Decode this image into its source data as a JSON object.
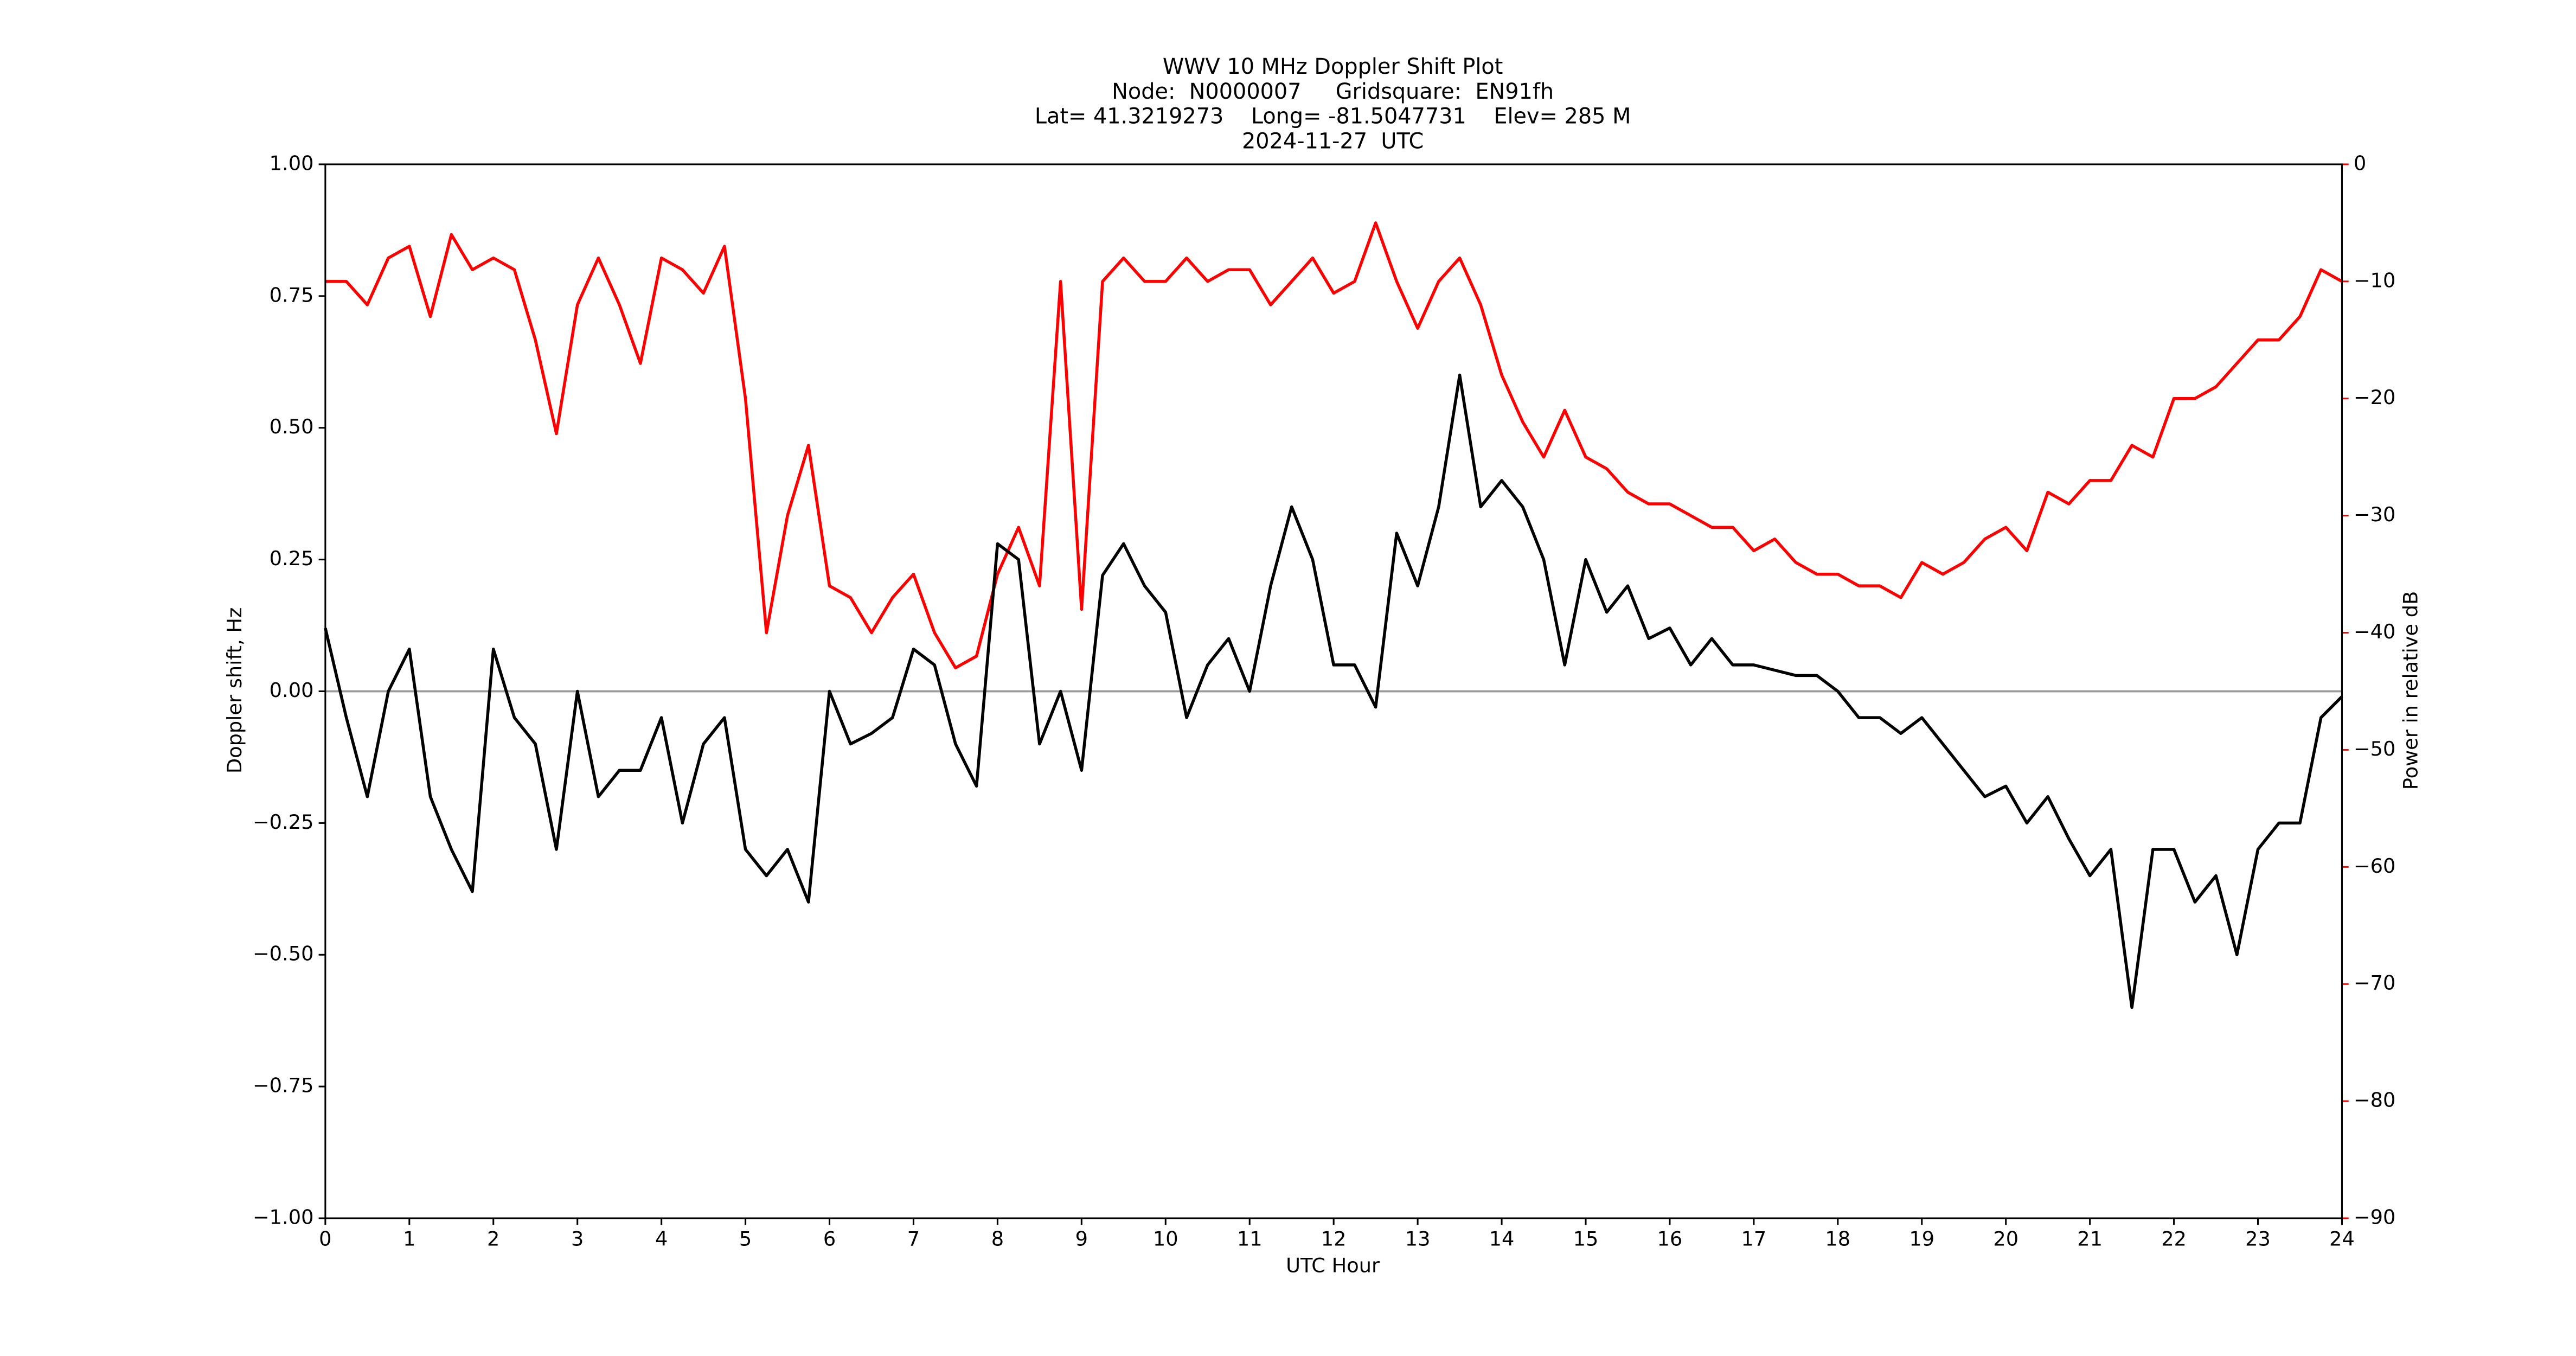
{
  "chart_data": {
    "type": "line",
    "title": [
      "WWV 10 MHz Doppler Shift Plot",
      "Node:  N0000007     Gridsquare:  EN91fh",
      "Lat= 41.3219273    Long= -81.5047731    Elev= 285 M",
      "2024-11-27  UTC"
    ],
    "x_label": "UTC Hour",
    "y_label": "Doppler shift, Hz",
    "y2_label": "Power in relative dB",
    "xlim": [
      0,
      24
    ],
    "xticks": [
      0,
      1,
      2,
      3,
      4,
      5,
      6,
      7,
      8,
      9,
      10,
      11,
      12,
      13,
      14,
      15,
      16,
      17,
      18,
      19,
      20,
      21,
      22,
      23,
      24
    ],
    "ylim": [
      -1,
      1
    ],
    "yticks": [
      {
        "value": -1,
        "label": "−1.00"
      },
      {
        "value": -0.75,
        "label": "−0.75"
      },
      {
        "value": -0.5,
        "label": "−0.50"
      },
      {
        "value": -0.25,
        "label": "−0.25"
      },
      {
        "value": 0,
        "label": "0.00"
      },
      {
        "value": 0.25,
        "label": "0.25"
      },
      {
        "value": 0.5,
        "label": "0.50"
      },
      {
        "value": 0.75,
        "label": "0.75"
      },
      {
        "value": 1,
        "label": "1.00"
      }
    ],
    "y2lim": [
      -90,
      0
    ],
    "y2ticks": [
      {
        "value": -90,
        "label": "−90"
      },
      {
        "value": -80,
        "label": "−80"
      },
      {
        "value": -70,
        "label": "−70"
      },
      {
        "value": -60,
        "label": "−60"
      },
      {
        "value": -50,
        "label": "−50"
      },
      {
        "value": -40,
        "label": "−40"
      },
      {
        "value": -30,
        "label": "−30"
      },
      {
        "value": -20,
        "label": "−20"
      },
      {
        "value": -10,
        "label": "−10"
      },
      0
    ],
    "reference_line": {
      "value": 0,
      "color": "#999999"
    },
    "y2_color": "#ff0000",
    "x": [
      0,
      0.25,
      0.5,
      0.75,
      1,
      1.25,
      1.5,
      1.75,
      2,
      2.25,
      2.5,
      2.75,
      3,
      3.25,
      3.5,
      3.75,
      4,
      4.25,
      4.5,
      4.75,
      5,
      5.25,
      5.5,
      5.75,
      6,
      6.25,
      6.5,
      6.75,
      7,
      7.25,
      7.5,
      7.75,
      8,
      8.25,
      8.5,
      8.75,
      9,
      9.25,
      9.5,
      9.75,
      10,
      10.25,
      10.5,
      10.75,
      11,
      11.25,
      11.5,
      11.75,
      12,
      12.25,
      12.5,
      12.75,
      13,
      13.25,
      13.5,
      13.75,
      14,
      14.25,
      14.5,
      14.75,
      15,
      15.25,
      15.5,
      15.75,
      16,
      16.25,
      16.5,
      16.75,
      17,
      17.25,
      17.5,
      17.75,
      18,
      18.25,
      18.5,
      18.75,
      19,
      19.25,
      19.5,
      19.75,
      20,
      20.25,
      20.5,
      20.75,
      21,
      21.25,
      21.5,
      21.75,
      22,
      22.25,
      22.5,
      22.75,
      23,
      23.25,
      23.5,
      23.75,
      24
    ],
    "series": [
      {
        "color": "#000000",
        "values": [
          0.12,
          -0.05,
          -0.2,
          0,
          0.08,
          -0.2,
          -0.3,
          -0.38,
          0.08,
          -0.05,
          -0.1,
          -0.3,
          0,
          -0.2,
          -0.15,
          -0.15,
          -0.05,
          -0.25,
          -0.1,
          -0.05,
          -0.3,
          -0.35,
          -0.3,
          -0.4,
          0,
          -0.1,
          -0.08,
          -0.05,
          0.08,
          0.05,
          -0.1,
          -0.18,
          0.28,
          0.25,
          -0.1,
          0,
          -0.15,
          0.22,
          0.28,
          0.2,
          0.15,
          -0.05,
          0.05,
          0.1,
          0,
          0.2,
          0.35,
          0.25,
          0.05,
          0.05,
          -0.03,
          0.3,
          0.2,
          0.35,
          0.6,
          0.35,
          0.4,
          0.35,
          0.25,
          0.05,
          0.25,
          0.15,
          0.2,
          0.1,
          0.12,
          0.05,
          0.1,
          0.05,
          0.05,
          0.04,
          0.03,
          0.03,
          0,
          -0.05,
          -0.05,
          -0.08,
          -0.05,
          -0.1,
          -0.15,
          -0.2,
          -0.18,
          -0.25,
          -0.2,
          -0.28,
          -0.35,
          -0.3,
          -0.6,
          -0.3,
          -0.3,
          -0.4,
          -0.35,
          -0.5,
          -0.3,
          -0.25,
          -0.25,
          -0.05,
          -0.01
        ]
      },
      {
        "color": "#ff0000",
        "axis": "y2",
        "values": [
          -10,
          -10,
          -12,
          -8,
          -7,
          -13,
          -6,
          -9,
          -8,
          -9,
          -15,
          -23,
          -12,
          -8,
          -12,
          -17,
          -8,
          -9,
          -11,
          -7,
          -20,
          -40,
          -30,
          -24,
          -36,
          -37,
          -40,
          -37,
          -35,
          -40,
          -43,
          -42,
          -35,
          -31,
          -36,
          -10,
          -38,
          -10,
          -8,
          -10,
          -10,
          -8,
          -10,
          -9,
          -9,
          -12,
          -10,
          -8,
          -11,
          -10,
          -5,
          -10,
          -14,
          -10,
          -8,
          -12,
          -18,
          -22,
          -25,
          -21,
          -25,
          -26,
          -28,
          -29,
          -29,
          -30,
          -31,
          -31,
          -33,
          -32,
          -34,
          -35,
          -35,
          -36,
          -36,
          -37,
          -34,
          -35,
          -34,
          -32,
          -31,
          -33,
          -28,
          -29,
          -27,
          -27,
          -24,
          -25,
          -20,
          -20,
          -19,
          -17,
          -15,
          -15,
          -13,
          -9,
          -10
        ]
      }
    ]
  }
}
